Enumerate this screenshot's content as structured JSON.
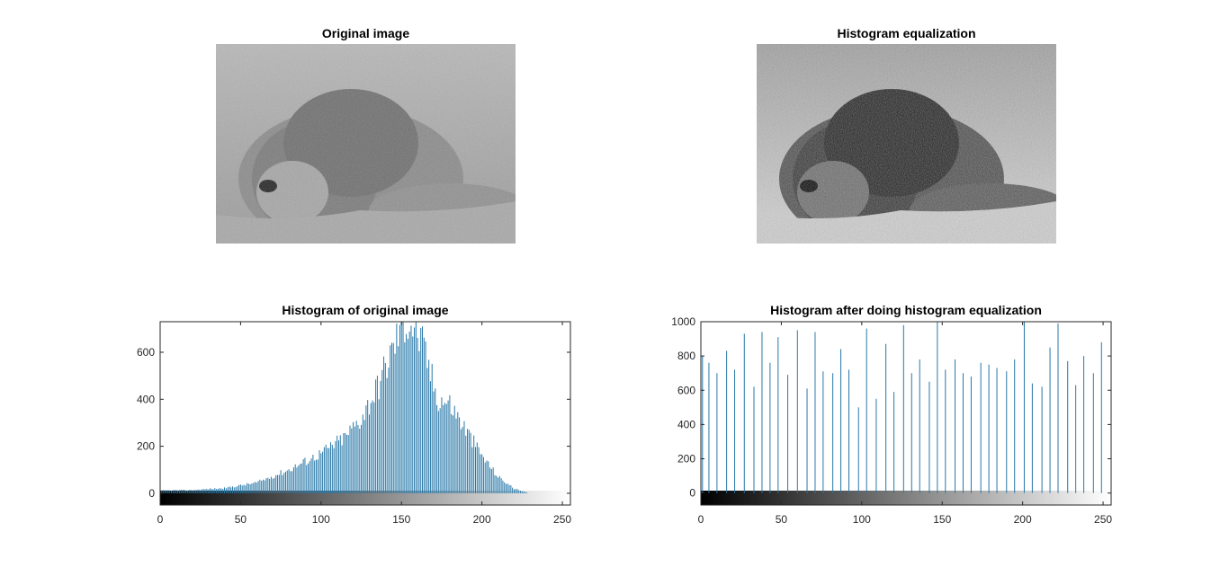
{
  "figure": {
    "original_title": "Original image",
    "equalized_title": "Histogram equalization",
    "colors": {
      "bar": "#2878a8",
      "axis": "#262626",
      "background": "#ffffff"
    }
  },
  "chart_data": [
    {
      "type": "bar",
      "title": "Histogram of original image",
      "xlabel": "",
      "ylabel": "",
      "xlim": [
        0,
        255
      ],
      "ylim": [
        -50,
        730
      ],
      "xticks": [
        0,
        50,
        100,
        150,
        200,
        250
      ],
      "yticks": [
        0,
        200,
        400,
        600
      ],
      "colorbar": "gray",
      "grid": false,
      "series": [
        {
          "shape": "unimodal",
          "peak_bin": 153,
          "peak_count": 730,
          "nonzero_range": [
            0,
            228
          ],
          "control_points": [
            [
              0,
              12
            ],
            [
              20,
              14
            ],
            [
              40,
              22
            ],
            [
              60,
              45
            ],
            [
              80,
              100
            ],
            [
              100,
              170
            ],
            [
              115,
              240
            ],
            [
              125,
              320
            ],
            [
              135,
              450
            ],
            [
              145,
              620
            ],
            [
              150,
              720
            ],
            [
              155,
              735
            ],
            [
              160,
              680
            ],
            [
              165,
              590
            ],
            [
              172,
              410
            ],
            [
              180,
              380
            ],
            [
              190,
              270
            ],
            [
              200,
              160
            ],
            [
              210,
              70
            ],
            [
              220,
              20
            ],
            [
              228,
              3
            ],
            [
              235,
              0
            ],
            [
              255,
              0
            ]
          ]
        }
      ]
    },
    {
      "type": "bar",
      "title": "Histogram after doing histogram equalization",
      "xlabel": "",
      "ylabel": "",
      "xlim": [
        0,
        255
      ],
      "ylim": [
        -70,
        1000
      ],
      "xticks": [
        0,
        50,
        100,
        150,
        200,
        250
      ],
      "yticks": [
        0,
        200,
        400,
        600,
        800,
        1000
      ],
      "colorbar": "gray",
      "grid": false,
      "series": [
        {
          "x": [
            1,
            5,
            10,
            16,
            21,
            27,
            33,
            38,
            43,
            48,
            54,
            60,
            66,
            71,
            76,
            82,
            87,
            92,
            98,
            103,
            109,
            115,
            120,
            126,
            131,
            136,
            142,
            147,
            152,
            158,
            163,
            168,
            174,
            179,
            184,
            190,
            195,
            201,
            206,
            212,
            217,
            222,
            228,
            233,
            238,
            244,
            249
          ],
          "values": [
            800,
            760,
            700,
            830,
            720,
            930,
            620,
            940,
            760,
            910,
            690,
            950,
            610,
            940,
            710,
            700,
            840,
            720,
            500,
            960,
            550,
            870,
            590,
            980,
            700,
            780,
            650,
            1000,
            720,
            780,
            700,
            680,
            760,
            750,
            730,
            710,
            780,
            1000,
            640,
            620,
            850,
            990,
            770,
            630,
            800,
            700,
            880
          ]
        }
      ]
    }
  ]
}
